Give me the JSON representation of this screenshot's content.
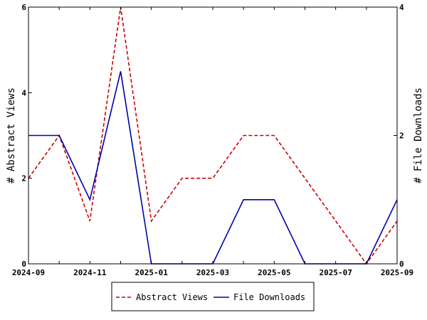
{
  "chart_data": {
    "type": "line",
    "x": [
      "2024-09",
      "2024-10",
      "2024-11",
      "2024-12",
      "2025-01",
      "2025-02",
      "2025-03",
      "2025-04",
      "2025-05",
      "2025-06",
      "2025-07",
      "2025-08",
      "2025-09"
    ],
    "xticks": [
      "2024-09",
      "2024-11",
      "2025-01",
      "2025-03",
      "2025-05",
      "2025-07",
      "2025-09"
    ],
    "y_left": {
      "label": "# Abstract Views",
      "lim": [
        0,
        6
      ],
      "ticks": [
        0,
        2,
        4,
        6
      ]
    },
    "y_right": {
      "label": "# File Downloads",
      "lim": [
        0,
        4
      ],
      "ticks": [
        0,
        2,
        4
      ]
    },
    "series": [
      {
        "name": "Abstract Views",
        "axis": "left",
        "color": "#cc0000",
        "style": "dashed",
        "values": [
          2,
          3,
          1,
          6,
          1,
          2,
          2,
          3,
          3,
          2,
          1,
          0,
          1
        ]
      },
      {
        "name": "File Downloads",
        "axis": "right",
        "color": "#0000aa",
        "style": "solid",
        "values": [
          2,
          2,
          1,
          3,
          0,
          0,
          0,
          1,
          1,
          0,
          0,
          0,
          1
        ]
      }
    ],
    "legend_position": "bottom-center",
    "grid": false
  }
}
